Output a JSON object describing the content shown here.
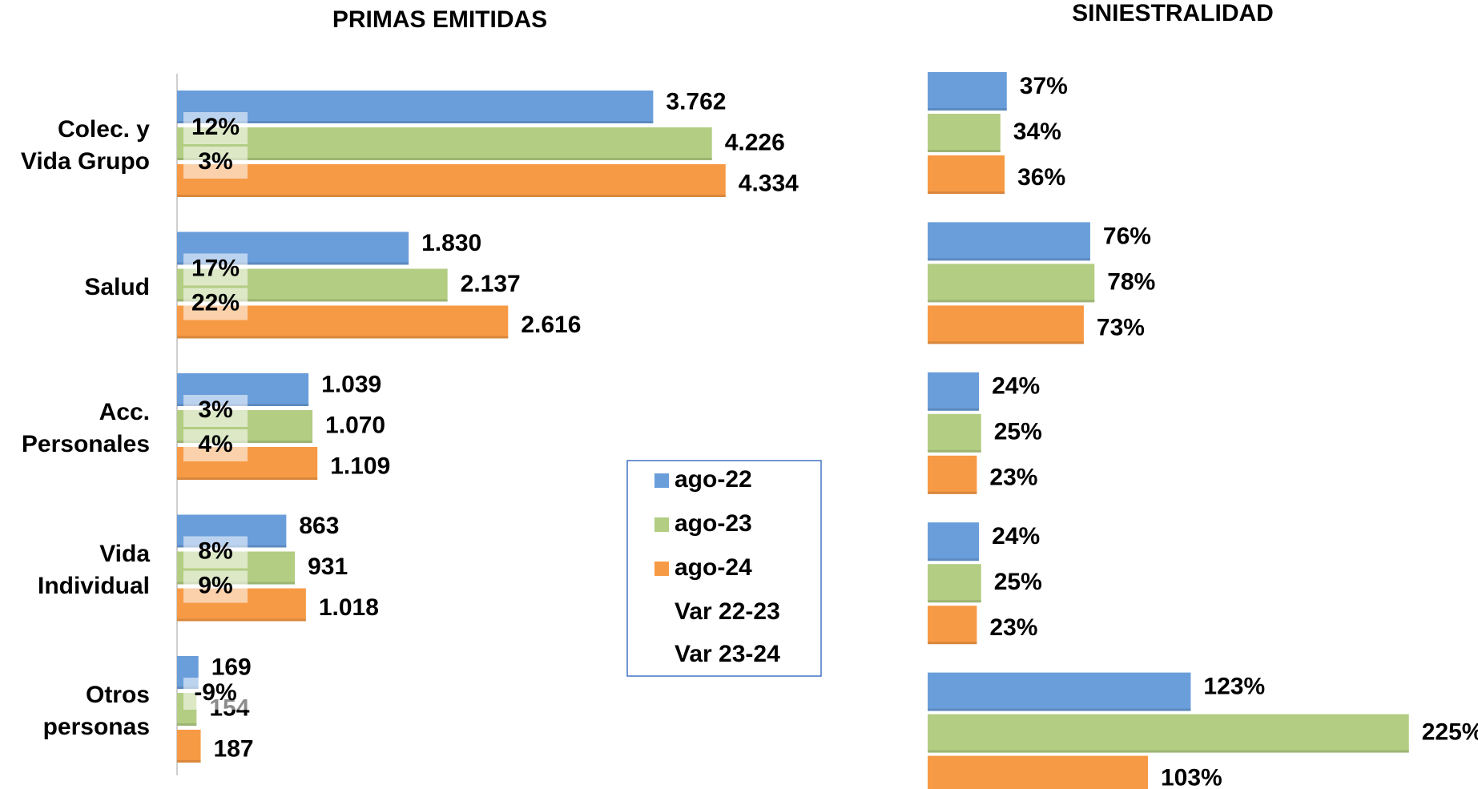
{
  "chart_data": [
    {
      "type": "bar",
      "orientation": "horizontal",
      "title": "PRIMAS EMITIDAS",
      "categories": [
        "Colec. y\nVida Grupo",
        "Salud",
        "Acc.\nPersonales",
        "Vida\nIndividual",
        "Otros\npersonas"
      ],
      "series": [
        {
          "name": "ago-22",
          "color": "#6a9edb",
          "values": [
            3762,
            1830,
            1039,
            863,
            169
          ],
          "value_labels": [
            "3.762",
            "1.830",
            "1.039",
            "863",
            "169"
          ]
        },
        {
          "name": "ago-23",
          "color": "#b3cd83",
          "values": [
            4226,
            2137,
            1070,
            931,
            154
          ],
          "value_labels": [
            "4.226",
            "2.137",
            "1.070",
            "931",
            "154"
          ]
        },
        {
          "name": "ago-24",
          "color": "#f79a45",
          "values": [
            4334,
            2616,
            1109,
            1018,
            187
          ],
          "value_labels": [
            "4.334",
            "2.616",
            "1.109",
            "1.018",
            "187"
          ]
        }
      ],
      "variations": [
        {
          "name": "Var 22-23",
          "color": "#000000",
          "values": [
            12,
            17,
            3,
            8,
            -9
          ],
          "value_labels": [
            "12%",
            "17%",
            "3%",
            "8%",
            "-9%"
          ]
        },
        {
          "name": "Var 23-24",
          "color": "#c00000",
          "values": [
            3,
            22,
            4,
            9,
            null
          ],
          "value_labels": [
            "3%",
            "22%",
            "4%",
            "9%",
            null
          ]
        }
      ]
    },
    {
      "type": "bar",
      "orientation": "horizontal",
      "title": "SINIESTRALIDAD",
      "series": [
        {
          "name": "ago-22",
          "color": "#6a9edb",
          "values": [
            37,
            76,
            24,
            24,
            123
          ],
          "value_labels": [
            "37%",
            "76%",
            "24%",
            "24%",
            "123%"
          ]
        },
        {
          "name": "ago-23",
          "color": "#b3cd83",
          "values": [
            34,
            78,
            25,
            25,
            225
          ],
          "value_labels": [
            "34%",
            "78%",
            "25%",
            "25%",
            "225%"
          ]
        },
        {
          "name": "ago-24",
          "color": "#f79a45",
          "values": [
            36,
            73,
            23,
            23,
            103
          ],
          "value_labels": [
            "36%",
            "73%",
            "23%",
            "23%",
            "103%"
          ]
        }
      ]
    }
  ]
}
